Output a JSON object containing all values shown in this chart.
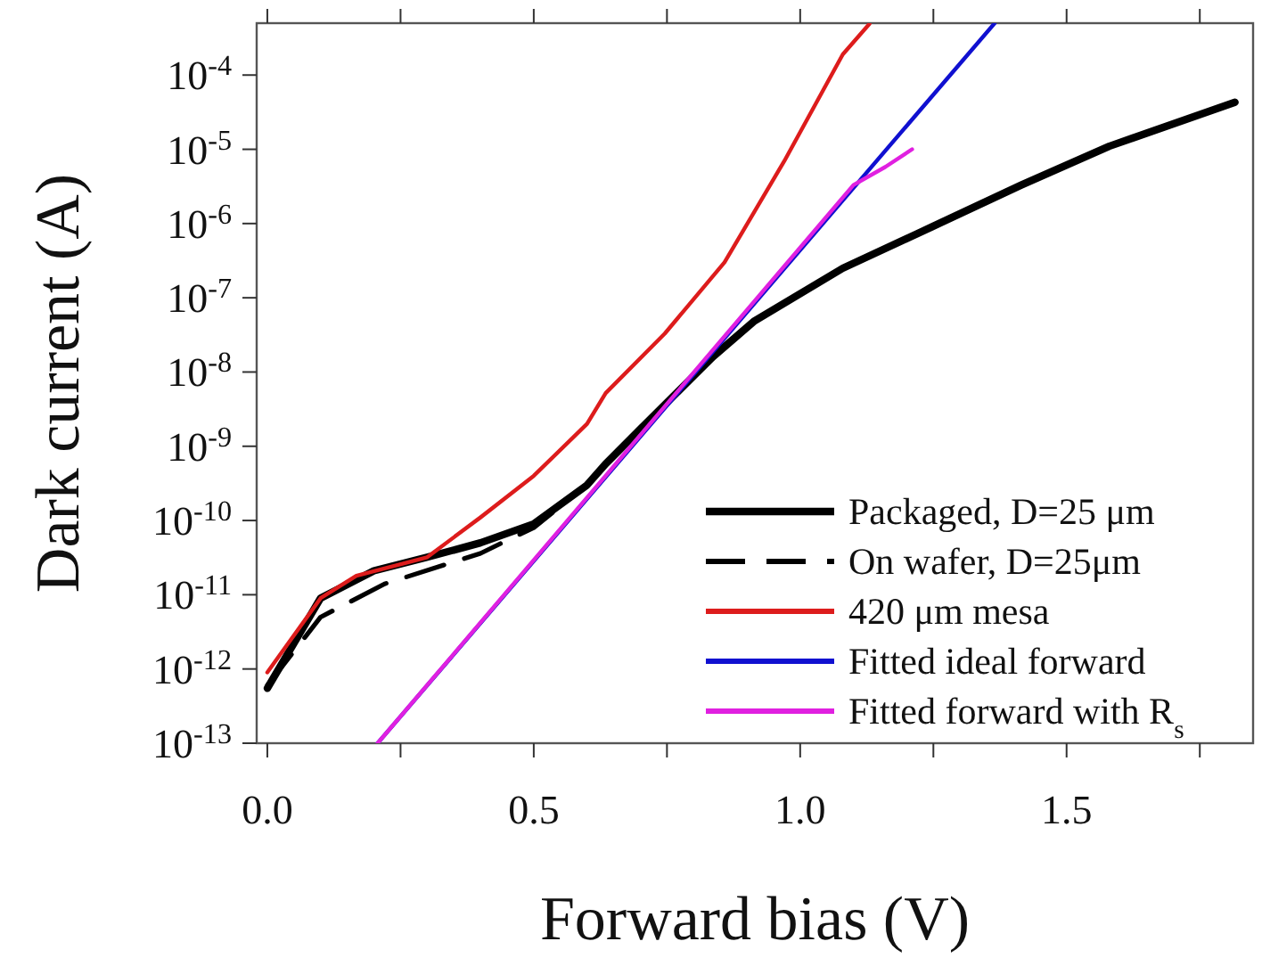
{
  "chart_data": {
    "type": "line",
    "xlabel": "Forward bias (V)",
    "ylabel": "Dark current (A)",
    "log": "y",
    "grid": false,
    "legend": "bottom right",
    "marker": "none",
    "xlim": [
      -0.02,
      1.85
    ],
    "xticks": [
      {
        "value": 0,
        "label": "0.0"
      },
      {
        "value": 0.25,
        "label": null
      },
      {
        "value": 0.5,
        "label": "0.5"
      },
      {
        "value": 0.75,
        "label": null
      },
      {
        "value": 1,
        "label": "1.0"
      },
      {
        "value": 1.25,
        "label": null
      },
      {
        "value": 1.5,
        "label": "1.5"
      },
      {
        "value": 1.75,
        "label": null
      }
    ],
    "ylim": [
      1e-13,
      0.0005
    ],
    "yticks": [
      {
        "value": 1e-13,
        "label": "10$^{-13}$"
      },
      {
        "value": 1e-12,
        "label": "10$^{-12}$"
      },
      {
        "value": 1e-11,
        "label": "10$^{-11}$"
      },
      {
        "value": 1e-10,
        "label": "10$^{-10}$"
      },
      {
        "value": 1e-09,
        "label": "10$^{-9}$"
      },
      {
        "value": 1e-08,
        "label": "10$^{-8}$"
      },
      {
        "value": 1e-07,
        "label": "10$^{-7}$"
      },
      {
        "value": 1e-06,
        "label": "10$^{-6}$"
      },
      {
        "value": 1e-05,
        "label": "10$^{-5}$"
      },
      {
        "value": 0.0001,
        "label": "10$^{-4}$"
      }
    ],
    "series": [
      {
        "name": "Packaged, D=25 μm",
        "color": "#000000",
        "line_style": "solid",
        "x": [
          0,
          0.1,
          0.2,
          0.3,
          0.4,
          0.5,
          0.6,
          0.635,
          0.7,
          0.836,
          0.913,
          1.08,
          1.247,
          1.415,
          1.58,
          1.816
        ],
        "values": [
          5.5e-13,
          9e-12,
          2.1e-11,
          3.2e-11,
          5e-11,
          9e-11,
          3e-10,
          5.8e-10,
          1.7e-09,
          1.6e-08,
          4.8e-08,
          2.5e-07,
          9e-07,
          3.3e-06,
          1.1e-05,
          4.3e-05
        ]
      },
      {
        "name": "On wafer, D=25μm",
        "color": "#000000",
        "line_style": "dashed",
        "x": [
          0,
          0.1,
          0.22,
          0.4,
          0.45,
          0.5,
          0.6,
          0.7,
          0.836,
          0.913
        ],
        "values": [
          6e-13,
          5e-12,
          1.4e-11,
          3.6e-11,
          5.4e-11,
          8e-11,
          3e-10,
          1.7e-09,
          1.6e-08,
          4.8e-08
        ]
      },
      {
        "name": "420 μm mesa",
        "color": "#dd1c1c",
        "line_style": "solid",
        "x": [
          0,
          0.1,
          0.167,
          0.3,
          0.4,
          0.5,
          0.6,
          0.635,
          0.746,
          0.858,
          0.97,
          1.08,
          1.13
        ],
        "values": [
          9e-13,
          9e-12,
          1.8e-11,
          3.2e-11,
          1.1e-10,
          4e-10,
          2e-09,
          5.2e-09,
          3.3e-08,
          3e-07,
          6.9e-06,
          0.00019,
          0.00049
        ]
      },
      {
        "name": "Fitted ideal forward",
        "color": "#1010d0",
        "line_style": "solid",
        "x": [
          0.207,
          1.365
        ],
        "values": [
          1e-13,
          0.0005
        ]
      },
      {
        "name": "Fitted forward with R$_{s}$",
        "color": "#e020e0",
        "line_style": "solid",
        "x": [
          0.207,
          1.1,
          1.16,
          1.21
        ],
        "values": [
          1e-13,
          3.3e-06,
          5.8e-06,
          1e-05
        ]
      }
    ]
  }
}
